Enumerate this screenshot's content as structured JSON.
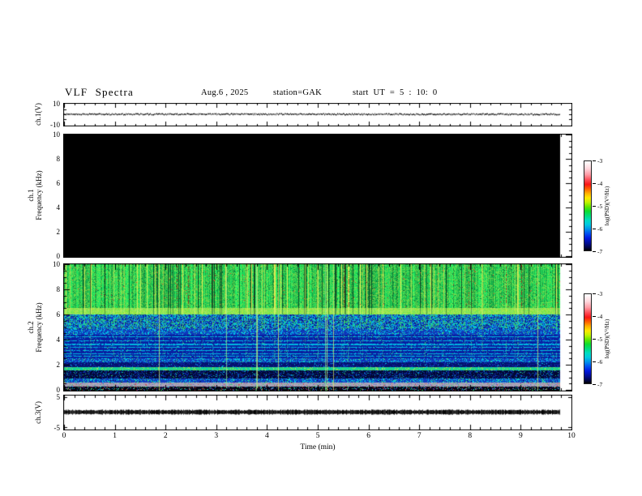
{
  "header": {
    "title": "VLF Spectra",
    "date": "Aug.6 , 2025",
    "station": "station=GAK",
    "start_ut": "start UT =  5 : 10: 0"
  },
  "xaxis": {
    "label": "Time (min)",
    "ticks": [
      "0",
      "1",
      "2",
      "3",
      "4",
      "5",
      "6",
      "7",
      "8",
      "9",
      "10"
    ]
  },
  "panels": {
    "ch1v": {
      "name": "ch.1(V)",
      "ymax": "10",
      "ymin": "-10"
    },
    "ch1spec": {
      "name_line1": "ch.1",
      "name_line2": "Frequency (kHz)",
      "yticks": [
        "10",
        "8",
        "6",
        "4",
        "2",
        "0"
      ]
    },
    "ch2spec": {
      "name_line1": "ch.2",
      "name_line2": "Frequency (kHz)",
      "yticks": [
        "10",
        "8",
        "6",
        "4",
        "2",
        "0"
      ]
    },
    "ch3v": {
      "name": "ch.3(V)",
      "ymax": "5",
      "ymin": "-5"
    }
  },
  "colorbar": {
    "label": "log(PSD)(V²/Hz)",
    "ticks": [
      "-3",
      "-4",
      "-5",
      "-6",
      "-7"
    ],
    "gradient": [
      [
        0,
        "#ffffff"
      ],
      [
        0.08,
        "#ffd9de"
      ],
      [
        0.15,
        "#ff9aa4"
      ],
      [
        0.21,
        "#ff4b55"
      ],
      [
        0.26,
        "#f81616"
      ],
      [
        0.31,
        "#ff5f00"
      ],
      [
        0.36,
        "#ffb000"
      ],
      [
        0.41,
        "#ffe800"
      ],
      [
        0.46,
        "#c0f200"
      ],
      [
        0.51,
        "#62e600"
      ],
      [
        0.56,
        "#0ddc2f"
      ],
      [
        0.61,
        "#00dc78"
      ],
      [
        0.66,
        "#00dcc0"
      ],
      [
        0.71,
        "#00c8e0"
      ],
      [
        0.76,
        "#0092ea"
      ],
      [
        0.81,
        "#0050f0"
      ],
      [
        0.86,
        "#0018e0"
      ],
      [
        0.92,
        "#000c90"
      ],
      [
        0.97,
        "#000440"
      ],
      [
        1,
        "#000000"
      ]
    ]
  },
  "chart_data": {
    "type": "spectrogram",
    "title": "VLF Spectra",
    "station": "GAK",
    "date": "Aug.6 , 2025",
    "start_ut": "5:10:0",
    "time_axis": {
      "label": "Time (min)",
      "range": [
        0,
        10
      ],
      "major_tick_step": 1,
      "minor_tick_step": 0.2,
      "data_end_min": 9.77
    },
    "psd_colorbar": {
      "label": "log(PSD)(V²/Hz)",
      "range": [
        -7,
        -3
      ],
      "ticks": [
        -3,
        -4,
        -5,
        -6,
        -7
      ]
    },
    "ch1_voltage": {
      "ylabel": "ch.1(V)",
      "yrange": [
        -10,
        10
      ],
      "summary": "flat trace at ~0 V across 0-9.77 min"
    },
    "ch1_spectrogram": {
      "ylabel": "ch.1 Frequency (kHz)",
      "yrange_khz": [
        0,
        10
      ],
      "summary": "uniformly at/below -7 log(PSD): rendered solid black, no signal above threshold"
    },
    "ch2_spectrogram": {
      "ylabel": "ch.2 Frequency (kHz)",
      "yrange_khz": [
        0,
        10
      ],
      "bands": [
        {
          "f_khz": [
            6.55,
            10.0
          ],
          "log_psd_approx": -4.9,
          "style": "green_streaky",
          "color": "#1ec050"
        },
        {
          "f_khz": [
            6.05,
            6.55
          ],
          "log_psd_approx": -4.6,
          "style": "bright_band",
          "color": "#96e446"
        },
        {
          "f_khz": [
            4.85,
            6.05
          ],
          "log_psd_approx": -5.7,
          "style": "mottled",
          "color": "#1946cd"
        },
        {
          "f_khz": [
            4.4,
            4.85
          ],
          "log_psd_approx": -6.0,
          "style": "speckle_blue",
          "color": "#1446d2"
        },
        {
          "f_khz": [
            2.55,
            4.4
          ],
          "log_psd_approx": -6.3,
          "style": "dark_blue_lines",
          "color": "#061996"
        },
        {
          "f_khz": [
            2.2,
            2.55
          ],
          "log_psd_approx": -6.0,
          "style": "speckle_blue",
          "color": "#1446d2"
        },
        {
          "f_khz": [
            1.85,
            2.2
          ],
          "log_psd_approx": -6.6,
          "style": "dark_mid",
          "color": "#04126e"
        },
        {
          "f_khz": [
            1.6,
            1.85
          ],
          "log_psd_approx": -5.3,
          "style": "green_band",
          "color": "#32d278"
        },
        {
          "f_khz": [
            0.95,
            1.6
          ],
          "log_psd_approx": -6.85,
          "style": "near_black",
          "color": "#020832"
        },
        {
          "f_khz": [
            0.6,
            0.95
          ],
          "log_psd_approx": -6.1,
          "style": "speckle_bright",
          "color": "#0f3cbe"
        },
        {
          "f_khz": [
            0.32,
            0.6
          ],
          "log_psd_approx": -4.7,
          "style": "gray_band",
          "color": "#a8a2b6"
        },
        {
          "f_khz": [
            0.0,
            0.32
          ],
          "log_psd_approx": -6.7,
          "style": "dark_speckle",
          "color": "#060619"
        }
      ],
      "horizontal_lines_khz": [
        4.55,
        4.25,
        3.95,
        3.65,
        3.4,
        3.15,
        2.9,
        2.7
      ],
      "vertical_features": {
        "bright_streak_fraction": 0.1,
        "dark_streak_fraction": 0.07,
        "full_height_line_fraction": 0.02
      }
    },
    "ch3_voltage": {
      "ylabel": "ch.3(V)",
      "yrange": [
        -5,
        5
      ],
      "summary": "saturated noisy band at ~0±0.6 V across 0-9.77 min"
    }
  }
}
